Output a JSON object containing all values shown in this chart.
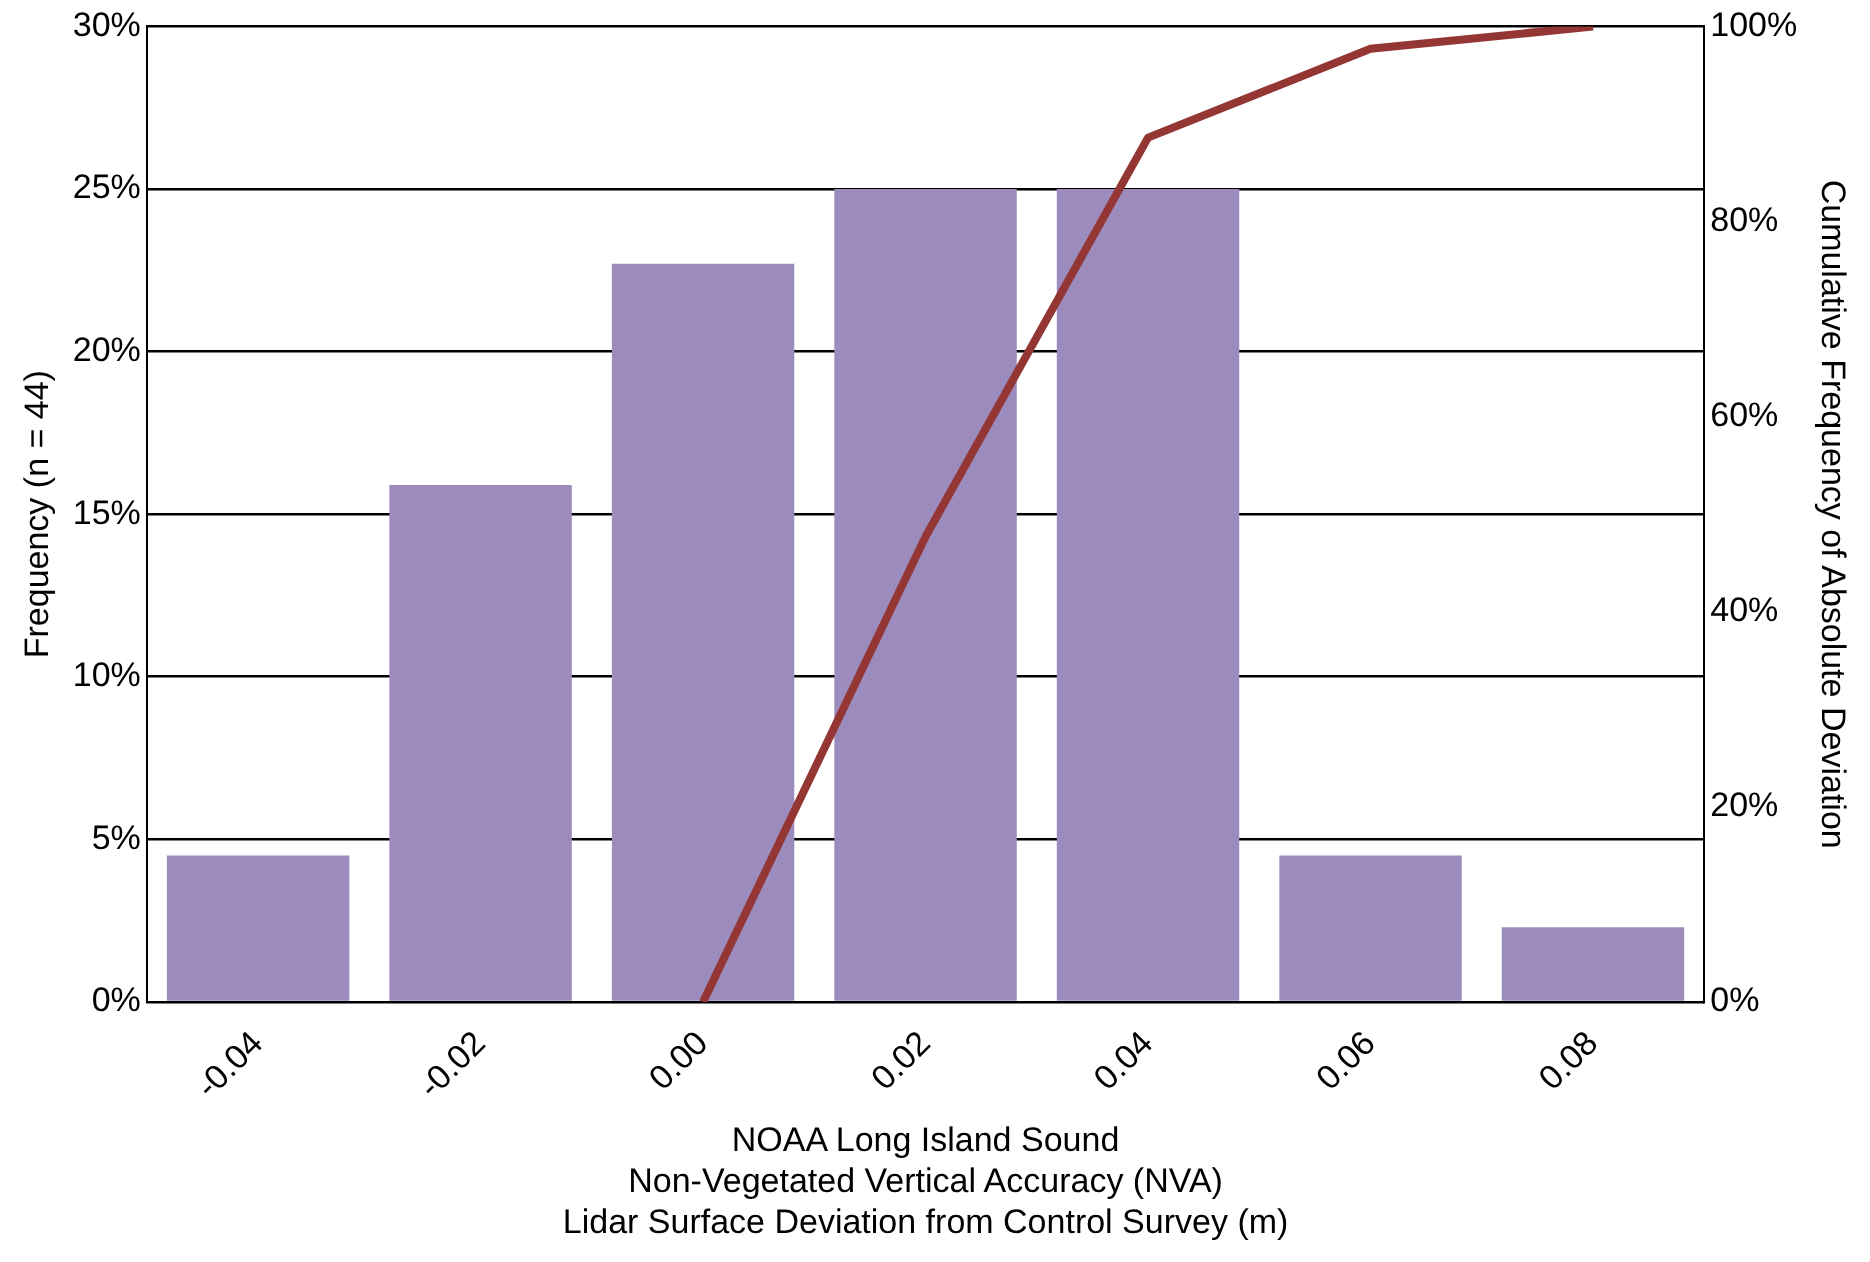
{
  "chart_data": {
    "type": "bar",
    "xlabel": "NOAA Long Island Sound\nNon-Vegetated Vertical Accuracy (NVA)\nLidar Surface Deviation from Control Survey (m)",
    "ylabel": "Frequency (n = 44)",
    "y2label": "Cumulative Frequency of Absolute Deviation",
    "categories": [
      "-0.04",
      "-0.02",
      "0.00",
      "0.02",
      "0.04",
      "0.06",
      "0.08"
    ],
    "series": [
      {
        "color": "#9c8bbd",
        "values": [
          4.5,
          15.9,
          22.7,
          25,
          25,
          4.5,
          2.3
        ]
      },
      {
        "type": "line",
        "axis": "y2",
        "color": "#943634",
        "values": [
          null,
          null,
          0,
          47.7,
          88.6,
          97.7,
          100
        ]
      }
    ],
    "ylim": [
      0,
      30
    ],
    "yticks": [
      {
        "value": 0,
        "label": "0%"
      },
      {
        "value": 5,
        "label": "5%"
      },
      {
        "value": 10,
        "label": "10%"
      },
      {
        "value": 15,
        "label": "15%"
      },
      {
        "value": 20,
        "label": "20%"
      },
      {
        "value": 25,
        "label": "25%"
      },
      {
        "value": 30,
        "label": "30%"
      }
    ],
    "y2lim": [
      0,
      100
    ],
    "y2ticks": [
      {
        "value": 0,
        "label": "0%"
      },
      {
        "value": 20,
        "label": "20%"
      },
      {
        "value": 40,
        "label": "40%"
      },
      {
        "value": 60,
        "label": "60%"
      },
      {
        "value": 80,
        "label": "80%"
      },
      {
        "value": 100,
        "label": "100%"
      }
    ],
    "grid": "y",
    "legend": false,
    "marker": "none",
    "line_style": "solid"
  }
}
